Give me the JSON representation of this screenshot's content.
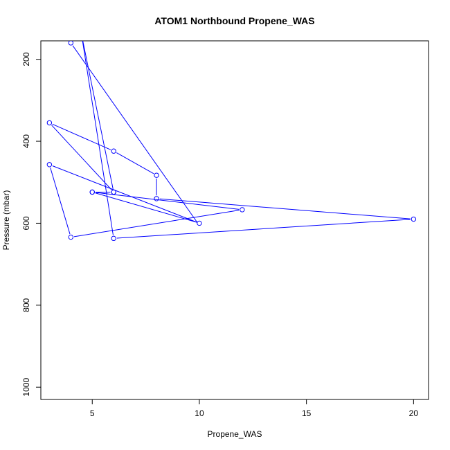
{
  "chart_data": {
    "type": "line",
    "title": "ATOM1 Northbound Propene_WAS",
    "xlabel": "Propene_WAS",
    "ylabel": "Pressure (mbar)",
    "xlim": [
      2.6,
      20.7
    ],
    "ylim": [
      1030,
      155
    ],
    "y_reversed": true,
    "x_ticks": [
      5,
      10,
      15,
      20
    ],
    "y_ticks": [
      200,
      400,
      600,
      800,
      1000
    ],
    "grid": false,
    "color": "#0000ff",
    "series": [
      {
        "x": [
          4.3,
          4.0,
          9.9,
          5.0,
          6.0,
          3.0,
          6.0,
          8.0,
          8.0,
          20.0,
          6.0,
          4.5,
          6.0,
          5.0,
          12.0,
          4.0,
          3.0,
          10.0
        ],
        "y": [
          140,
          160,
          598,
          524,
          524,
          355,
          424,
          483,
          540,
          590,
          637,
          140,
          524,
          524,
          567,
          634,
          457,
          600
        ],
        "points": [
          false,
          true,
          false,
          true,
          true,
          true,
          true,
          true,
          true,
          true,
          true,
          false,
          true,
          true,
          true,
          true,
          true,
          true
        ]
      }
    ]
  }
}
